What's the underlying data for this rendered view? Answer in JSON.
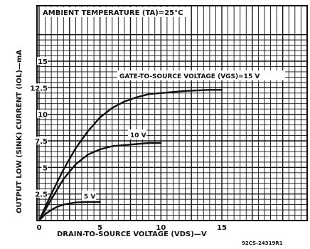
{
  "chart_data": {
    "type": "line",
    "title": "AMBIENT TEMPERATURE (TA)=25°C",
    "xlabel": "DRAIN-TO-SOURCE VOLTAGE (VDS)—V",
    "ylabel": "OUTPUT LOW (SINK) CURRENT (IOL)—mA",
    "xlim": [
      0,
      23
    ],
    "ylim": [
      0,
      17.5
    ],
    "x_ticks": [
      {
        "value": 0,
        "label": "0"
      },
      {
        "value": 5,
        "label": "5"
      },
      {
        "value": 10,
        "label": "10"
      },
      {
        "value": 15,
        "label": "15"
      }
    ],
    "y_ticks": [
      {
        "value": 2.5,
        "label": "2.5"
      },
      {
        "value": 5,
        "label": "5"
      },
      {
        "value": 7.5,
        "label": "7.5"
      },
      {
        "value": 10,
        "label": "10"
      },
      {
        "value": 12.5,
        "label": "12.5"
      },
      {
        "value": 15,
        "label": "15"
      }
    ],
    "grid": true,
    "series": [
      {
        "name": "GATE-TO-SOURCE VOLTAGE (VGS)=15 V",
        "x": [
          0,
          1,
          2,
          3,
          4,
          5,
          6,
          7,
          8,
          9,
          10,
          12,
          14,
          15
        ],
        "y": [
          0,
          2.5,
          4.8,
          6.8,
          8.4,
          9.7,
          10.6,
          11.2,
          11.6,
          11.9,
          12.0,
          12.2,
          12.3,
          12.3
        ]
      },
      {
        "name": "10 V",
        "x": [
          0,
          1,
          2,
          3,
          4,
          5,
          6,
          7,
          8,
          9,
          10
        ],
        "y": [
          0,
          2.0,
          3.9,
          5.3,
          6.2,
          6.7,
          7.0,
          7.1,
          7.2,
          7.3,
          7.3
        ]
      },
      {
        "name": "5 V",
        "x": [
          0,
          0.5,
          1,
          1.5,
          2,
          3,
          4,
          5
        ],
        "y": [
          0,
          0.6,
          1.0,
          1.3,
          1.5,
          1.7,
          1.75,
          1.75
        ]
      }
    ],
    "annotations": [
      "GATE-TO-SOURCE VOLTAGE (VGS)=15 V",
      "10 V",
      "5 V"
    ],
    "figure_code": "92CS-24319R1"
  }
}
